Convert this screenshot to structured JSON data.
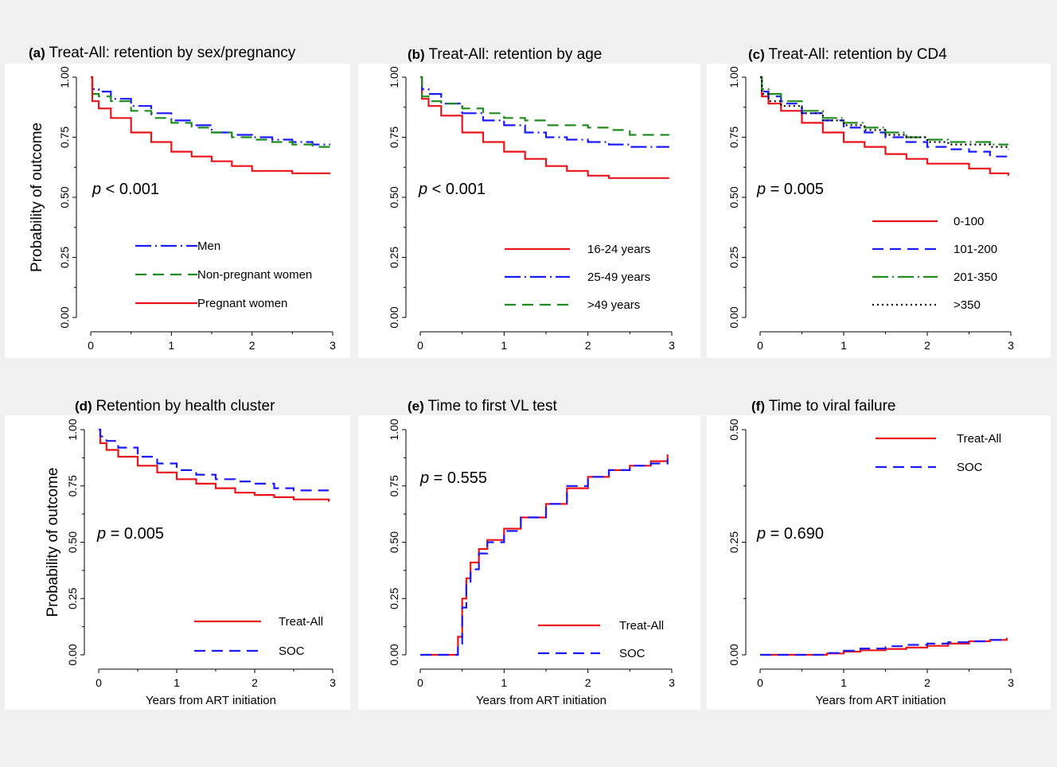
{
  "figure": {
    "background": "#f0f0f0",
    "plot_background": "#ffffff",
    "shared_ylabel": "Probability of outcome",
    "shared_xlabel": "Years from ART initiation"
  },
  "chart_data": [
    {
      "id": "a",
      "type": "line",
      "panel_label": "(a)",
      "title": "Treat-All: retention by sex/pregnancy",
      "ylabel": "Probability of outcome",
      "xlabel": "",
      "xlim": [
        0,
        3
      ],
      "ylim": [
        0,
        1
      ],
      "xticks": [
        0,
        1,
        2,
        3
      ],
      "yticks": [
        "0.00",
        "0.25",
        "0.50",
        "0.75",
        "1.00"
      ],
      "annotation": {
        "p_label": "p",
        "p_text": "< 0.001"
      },
      "legend_position": "bottom-center",
      "series": [
        {
          "name": "Men",
          "color": "#1a1aff",
          "dash": "long-dash-dot",
          "x": [
            0,
            0.02,
            0.1,
            0.25,
            0.5,
            0.75,
            1.0,
            1.25,
            1.5,
            1.75,
            2.0,
            2.25,
            2.5,
            2.75,
            2.97
          ],
          "y": [
            1.0,
            0.95,
            0.94,
            0.91,
            0.88,
            0.85,
            0.82,
            0.8,
            0.77,
            0.76,
            0.75,
            0.74,
            0.73,
            0.72,
            0.72
          ]
        },
        {
          "name": "Non-pregnant women",
          "color": "#1e8c1e",
          "dash": "dash",
          "x": [
            0,
            0.02,
            0.1,
            0.25,
            0.5,
            0.75,
            1.0,
            1.25,
            1.5,
            1.75,
            2.0,
            2.25,
            2.5,
            2.75,
            2.97
          ],
          "y": [
            1.0,
            0.93,
            0.92,
            0.9,
            0.86,
            0.83,
            0.81,
            0.79,
            0.77,
            0.75,
            0.74,
            0.73,
            0.72,
            0.71,
            0.7
          ]
        },
        {
          "name": "Pregnant women",
          "color": "#e8141a",
          "dash": "solid",
          "x": [
            0,
            0.02,
            0.1,
            0.25,
            0.5,
            0.75,
            1.0,
            1.25,
            1.5,
            1.75,
            2.0,
            2.25,
            2.5,
            2.75,
            2.97
          ],
          "y": [
            1.0,
            0.9,
            0.87,
            0.83,
            0.77,
            0.73,
            0.69,
            0.67,
            0.65,
            0.63,
            0.61,
            0.61,
            0.6,
            0.6,
            0.6
          ]
        }
      ]
    },
    {
      "id": "b",
      "type": "line",
      "panel_label": "(b)",
      "title": "Treat-All: retention by age",
      "ylabel": "",
      "xlabel": "",
      "xlim": [
        0,
        3
      ],
      "ylim": [
        0,
        1
      ],
      "xticks": [
        0,
        1,
        2,
        3
      ],
      "yticks": [
        "0.00",
        "0.25",
        "0.50",
        "0.75",
        "1.00"
      ],
      "annotation": {
        "p_label": "p",
        "p_text": "< 0.001"
      },
      "legend_position": "bottom-center",
      "series": [
        {
          "name": "16-24 years",
          "color": "#e8141a",
          "dash": "solid",
          "x": [
            0,
            0.02,
            0.1,
            0.25,
            0.5,
            0.75,
            1.0,
            1.25,
            1.5,
            1.75,
            2.0,
            2.25,
            2.5,
            2.75,
            2.97
          ],
          "y": [
            1.0,
            0.91,
            0.88,
            0.84,
            0.77,
            0.73,
            0.69,
            0.66,
            0.63,
            0.61,
            0.59,
            0.58,
            0.58,
            0.58,
            0.58
          ]
        },
        {
          "name": "25-49 years",
          "color": "#1a1aff",
          "dash": "long-dash-dot",
          "x": [
            0,
            0.02,
            0.1,
            0.25,
            0.5,
            0.75,
            1.0,
            1.25,
            1.5,
            1.75,
            2.0,
            2.25,
            2.5,
            2.75,
            2.97
          ],
          "y": [
            1.0,
            0.95,
            0.93,
            0.89,
            0.85,
            0.82,
            0.8,
            0.77,
            0.75,
            0.74,
            0.73,
            0.72,
            0.71,
            0.71,
            0.71
          ]
        },
        {
          "name": ">49 years",
          "color": "#1e8c1e",
          "dash": "dash",
          "x": [
            0,
            0.02,
            0.1,
            0.25,
            0.5,
            0.75,
            1.0,
            1.25,
            1.5,
            1.75,
            2.0,
            2.25,
            2.5,
            2.75,
            2.97
          ],
          "y": [
            1.0,
            0.92,
            0.9,
            0.89,
            0.87,
            0.85,
            0.83,
            0.82,
            0.8,
            0.8,
            0.79,
            0.78,
            0.76,
            0.76,
            0.76
          ]
        }
      ]
    },
    {
      "id": "c",
      "type": "line",
      "panel_label": "(c)",
      "title": "Treat-All: retention by CD4",
      "ylabel": "",
      "xlabel": "",
      "xlim": [
        0,
        3
      ],
      "ylim": [
        0,
        1
      ],
      "xticks": [
        0,
        1,
        2,
        3
      ],
      "yticks": [
        "0.00",
        "0.25",
        "0.50",
        "0.75",
        "1.00"
      ],
      "annotation": {
        "p_label": "p",
        "p_text": "= 0.005"
      },
      "legend_position": "bottom-right",
      "series": [
        {
          "name": "0-100",
          "color": "#e8141a",
          "dash": "solid",
          "x": [
            0,
            0.02,
            0.1,
            0.25,
            0.5,
            0.75,
            1.0,
            1.25,
            1.5,
            1.75,
            2.0,
            2.25,
            2.5,
            2.75,
            2.97
          ],
          "y": [
            1.0,
            0.92,
            0.89,
            0.86,
            0.81,
            0.77,
            0.73,
            0.71,
            0.68,
            0.66,
            0.64,
            0.64,
            0.62,
            0.6,
            0.59
          ]
        },
        {
          "name": "101-200",
          "color": "#1a1aff",
          "dash": "dash",
          "x": [
            0,
            0.02,
            0.1,
            0.25,
            0.5,
            0.75,
            1.0,
            1.25,
            1.5,
            1.75,
            2.0,
            2.25,
            2.5,
            2.75,
            2.97
          ],
          "y": [
            1.0,
            0.94,
            0.92,
            0.89,
            0.85,
            0.82,
            0.79,
            0.77,
            0.75,
            0.73,
            0.71,
            0.7,
            0.69,
            0.67,
            0.67
          ]
        },
        {
          "name": "201-350",
          "color": "#1e8c1e",
          "dash": "long-dash-dot",
          "x": [
            0,
            0.02,
            0.1,
            0.25,
            0.5,
            0.75,
            1.0,
            1.25,
            1.5,
            1.75,
            2.0,
            2.25,
            2.5,
            2.75,
            2.97
          ],
          "y": [
            1.0,
            0.95,
            0.93,
            0.9,
            0.86,
            0.83,
            0.81,
            0.79,
            0.77,
            0.75,
            0.74,
            0.73,
            0.73,
            0.72,
            0.72
          ]
        },
        {
          "name": ">350",
          "color": "#000000",
          "dash": "dot",
          "x": [
            0,
            0.02,
            0.1,
            0.25,
            0.5,
            0.75,
            1.0,
            1.25,
            1.5,
            1.75,
            2.0,
            2.25,
            2.5,
            2.75,
            2.97
          ],
          "y": [
            1.0,
            0.93,
            0.9,
            0.88,
            0.85,
            0.82,
            0.8,
            0.78,
            0.76,
            0.75,
            0.73,
            0.72,
            0.72,
            0.71,
            0.7
          ]
        }
      ]
    },
    {
      "id": "d",
      "type": "line",
      "panel_label": "(d)",
      "title": "Retention by health cluster",
      "ylabel": "Probability of outcome",
      "xlabel": "Years from ART initiation",
      "xlim": [
        0,
        3
      ],
      "ylim": [
        0,
        1
      ],
      "xticks": [
        0,
        1,
        2,
        3
      ],
      "yticks": [
        "0.00",
        "0.25",
        "0.50",
        "0.75",
        "1.00"
      ],
      "annotation": {
        "p_label": "p",
        "p_text": "= 0.005"
      },
      "legend_position": "bottom-right",
      "series": [
        {
          "name": "Treat-All",
          "color": "#e8141a",
          "dash": "solid",
          "x": [
            0,
            0.02,
            0.1,
            0.25,
            0.5,
            0.75,
            1.0,
            1.25,
            1.5,
            1.75,
            2.0,
            2.25,
            2.5,
            2.75,
            2.95
          ],
          "y": [
            1.0,
            0.94,
            0.91,
            0.88,
            0.84,
            0.81,
            0.78,
            0.76,
            0.74,
            0.72,
            0.71,
            0.7,
            0.69,
            0.69,
            0.68
          ]
        },
        {
          "name": "SOC",
          "color": "#1a1aff",
          "dash": "dash",
          "x": [
            0,
            0.02,
            0.1,
            0.25,
            0.5,
            0.75,
            1.0,
            1.25,
            1.5,
            1.75,
            2.0,
            2.25,
            2.5,
            2.75,
            2.95
          ],
          "y": [
            1.0,
            0.97,
            0.95,
            0.92,
            0.88,
            0.85,
            0.82,
            0.8,
            0.78,
            0.77,
            0.76,
            0.74,
            0.73,
            0.73,
            0.73
          ]
        }
      ]
    },
    {
      "id": "e",
      "type": "line",
      "panel_label": "(e)",
      "title": "Time to first VL test",
      "ylabel": "",
      "xlabel": "Years from ART initiation",
      "xlim": [
        0,
        3
      ],
      "ylim": [
        0,
        1
      ],
      "xticks": [
        0,
        1,
        2,
        3
      ],
      "yticks": [
        "0.00",
        "0.25",
        "0.50",
        "0.75",
        "1.00"
      ],
      "annotation": {
        "p_label": "p",
        "p_text": "= 0.555"
      },
      "legend_position": "bottom-right",
      "series": [
        {
          "name": "Treat-All",
          "color": "#e8141a",
          "dash": "solid",
          "x": [
            0,
            0.42,
            0.45,
            0.5,
            0.55,
            0.6,
            0.7,
            0.8,
            1.0,
            1.2,
            1.5,
            1.75,
            2.0,
            2.25,
            2.5,
            2.75,
            2.95
          ],
          "y": [
            0.0,
            0.0,
            0.08,
            0.25,
            0.34,
            0.41,
            0.47,
            0.51,
            0.56,
            0.61,
            0.67,
            0.74,
            0.79,
            0.82,
            0.84,
            0.86,
            0.89
          ]
        },
        {
          "name": "SOC",
          "color": "#1a1aff",
          "dash": "dash",
          "x": [
            0,
            0.42,
            0.45,
            0.5,
            0.55,
            0.6,
            0.7,
            0.8,
            1.0,
            1.2,
            1.5,
            1.75,
            2.0,
            2.25,
            2.5,
            2.75,
            2.95
          ],
          "y": [
            0.0,
            0.0,
            0.05,
            0.21,
            0.31,
            0.38,
            0.45,
            0.5,
            0.55,
            0.61,
            0.67,
            0.75,
            0.79,
            0.82,
            0.84,
            0.85,
            0.87
          ]
        }
      ]
    },
    {
      "id": "f",
      "type": "line",
      "panel_label": "(f)",
      "title": "Time to viral failure",
      "ylabel": "",
      "xlabel": "Years from ART initiation",
      "xlim": [
        0,
        3
      ],
      "ylim": [
        0,
        0.5
      ],
      "xticks": [
        0,
        1,
        2,
        3
      ],
      "yticks": [
        "0.00",
        "0.25",
        "0.50"
      ],
      "annotation": {
        "p_label": "p",
        "p_text": "= 0.690"
      },
      "legend_position": "top-right",
      "series": [
        {
          "name": "Treat-All",
          "color": "#e8141a",
          "dash": "solid",
          "x": [
            0,
            0.6,
            0.8,
            1.0,
            1.2,
            1.5,
            1.75,
            2.0,
            2.25,
            2.5,
            2.75,
            2.95
          ],
          "y": [
            0.0,
            0.0,
            0.003,
            0.007,
            0.01,
            0.013,
            0.016,
            0.02,
            0.025,
            0.03,
            0.033,
            0.038
          ]
        },
        {
          "name": "SOC",
          "color": "#1a1aff",
          "dash": "dash",
          "x": [
            0,
            0.6,
            0.8,
            1.0,
            1.2,
            1.5,
            1.75,
            2.0,
            2.25,
            2.5,
            2.75,
            2.95
          ],
          "y": [
            0.0,
            0.0,
            0.004,
            0.009,
            0.014,
            0.019,
            0.022,
            0.025,
            0.028,
            0.03,
            0.033,
            0.034
          ]
        }
      ]
    }
  ]
}
